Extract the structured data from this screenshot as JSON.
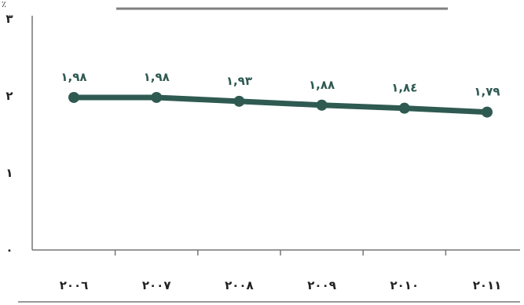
{
  "chart_data": {
    "type": "line",
    "unit_label": "٪",
    "categories": [
      "٢٠٠٦",
      "٢٠٠٧",
      "٢٠٠٨",
      "٢٠٠٩",
      "٢٠١٠",
      "٢٠١١"
    ],
    "series": [
      {
        "values": [
          1.98,
          1.98,
          1.93,
          1.88,
          1.84,
          1.79
        ],
        "value_labels": [
          "١,٩٨",
          "١,٩٨",
          "١,٩٣",
          "١,٨٨",
          "١,٨٤",
          "١,٧٩"
        ],
        "color": "#2f5a52"
      }
    ],
    "ylim": [
      0,
      3
    ],
    "yticks": [
      {
        "value": 0,
        "label": "٠"
      },
      {
        "value": 1,
        "label": "١"
      },
      {
        "value": 2,
        "label": "٢"
      },
      {
        "value": 3,
        "label": "٣"
      }
    ],
    "grid": false,
    "legend": "none",
    "colors": {
      "line": "#2f5a52",
      "axis": "#777777",
      "legend_bar": "#808080"
    }
  }
}
